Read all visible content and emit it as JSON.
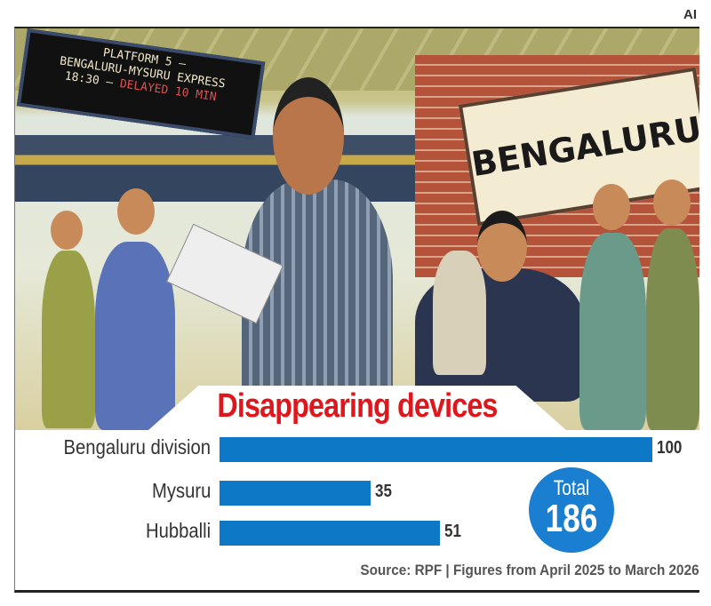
{
  "badge": "AI",
  "illustration": {
    "board_lines": [
      "PLATFORM 5 –",
      "BENGALURU-MYSURU EXPRESS"
    ],
    "board_time": "18:30 –",
    "board_status": "DELAYED 10 MIN",
    "station_sign": "BENGALURU"
  },
  "chart_data": {
    "type": "bar",
    "orientation": "horizontal",
    "title": "Disappearing devices",
    "categories": [
      "Bengaluru division",
      "Mysuru",
      "Hubballi"
    ],
    "values": [
      100,
      35,
      51
    ],
    "value_labels": [
      "100",
      "35",
      "51"
    ],
    "bar_color": "#0c78c6",
    "title_color": "#e0161d",
    "total_label": "Total",
    "total_value": "186",
    "source": "Source: RPF | Figures from April 2025 to March 2026",
    "grid": false
  }
}
